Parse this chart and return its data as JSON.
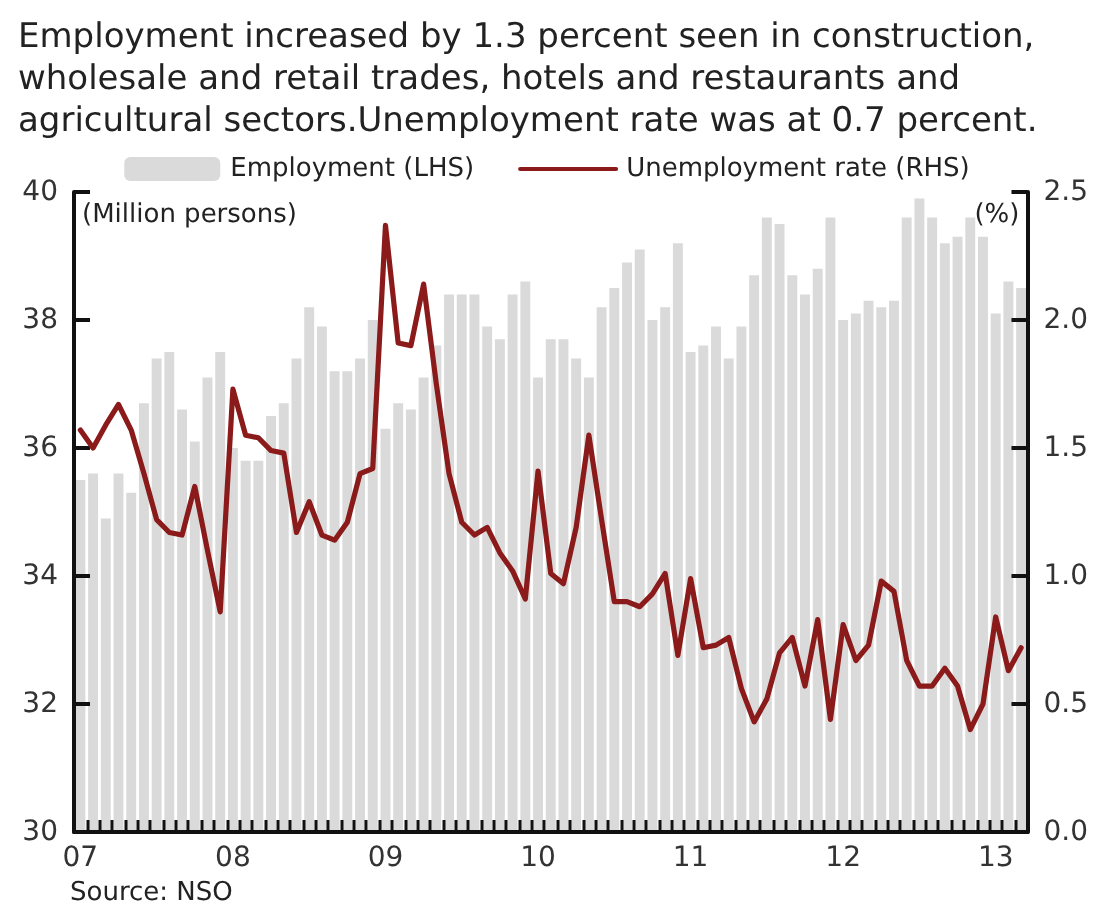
{
  "chart_data": {
    "type": "bar",
    "title": "Employment increased by 1.3 percent seen in construction, wholesale and retail trades, hotels and restaurants and agricultural sectors.Unemployment rate was at 0.7 percent.",
    "ylabel": "(Million persons)",
    "y2label": "(%)",
    "annotations": [
      "Source: NSO"
    ],
    "categories": [
      "07",
      null,
      null,
      null,
      null,
      null,
      null,
      null,
      null,
      null,
      null,
      null,
      "08",
      null,
      null,
      null,
      null,
      null,
      null,
      null,
      null,
      null,
      null,
      null,
      "09",
      null,
      null,
      null,
      null,
      null,
      null,
      null,
      null,
      null,
      null,
      null,
      "10",
      null,
      null,
      null,
      null,
      null,
      null,
      null,
      null,
      null,
      null,
      null,
      "11",
      null,
      null,
      null,
      null,
      null,
      null,
      null,
      null,
      null,
      null,
      null,
      "12",
      null,
      null,
      null,
      null,
      null,
      null,
      null,
      null,
      null,
      null,
      null,
      "13",
      null,
      null
    ],
    "series": [
      {
        "name": "Employment (LHS)",
        "color": "#dadada",
        "values": [
          35.5,
          35.6,
          34.9,
          35.6,
          35.3,
          36.7,
          37.4,
          37.5,
          36.6,
          36.1,
          37.1,
          37.5,
          36.0,
          35.8,
          35.8,
          36.5,
          36.7,
          37.4,
          38.2,
          37.9,
          37.2,
          37.2,
          37.4,
          38.0,
          36.3,
          36.7,
          36.6,
          37.1,
          37.6,
          38.4,
          38.4,
          38.4,
          37.9,
          37.7,
          38.4,
          38.6,
          37.1,
          37.7,
          37.7,
          37.4,
          37.1,
          38.2,
          38.5,
          38.9,
          39.1,
          38.0,
          38.2,
          39.2,
          37.5,
          37.6,
          37.9,
          37.4,
          37.9,
          38.7,
          39.6,
          39.5,
          38.7,
          38.4,
          38.8,
          39.6,
          38.0,
          38.1,
          38.3,
          38.2,
          38.3,
          39.6,
          39.9,
          39.6,
          39.2,
          39.3,
          39.6,
          39.3,
          38.1,
          38.6,
          38.5
        ]
      },
      {
        "name": "Unemployment rate (RHS)",
        "type": "line",
        "axis": "y2",
        "color": "#8b1a1a",
        "values": [
          1.57,
          1.5,
          1.59,
          1.67,
          1.57,
          1.4,
          1.22,
          1.17,
          1.16,
          1.35,
          1.1,
          0.86,
          1.73,
          1.55,
          1.54,
          1.49,
          1.48,
          1.17,
          1.29,
          1.16,
          1.14,
          1.21,
          1.4,
          1.42,
          2.37,
          1.91,
          1.9,
          2.14,
          1.75,
          1.4,
          1.21,
          1.16,
          1.19,
          1.09,
          1.02,
          0.91,
          1.41,
          1.01,
          0.97,
          1.19,
          1.55,
          1.22,
          0.9,
          0.9,
          0.88,
          0.93,
          1.01,
          0.69,
          0.99,
          0.72,
          0.73,
          0.76,
          0.56,
          0.43,
          0.52,
          0.7,
          0.76,
          0.57,
          0.83,
          0.44,
          0.81,
          0.67,
          0.73,
          0.98,
          0.94,
          0.67,
          0.57,
          0.57,
          0.64,
          0.57,
          0.4,
          0.5,
          0.84,
          0.63,
          0.72
        ]
      }
    ],
    "ylim": [
      30,
      40
    ],
    "yticks": [
      30,
      32,
      34,
      36,
      38,
      40
    ],
    "y2lim": [
      0,
      2.5
    ],
    "y2ticks": [
      {
        "value": 0,
        "label": "0.0"
      },
      0.5,
      {
        "value": 1,
        "label": "1.0"
      },
      1.5,
      {
        "value": 2,
        "label": "2.0"
      },
      2.5
    ],
    "legend": "top",
    "grid": false,
    "marker": "none"
  }
}
